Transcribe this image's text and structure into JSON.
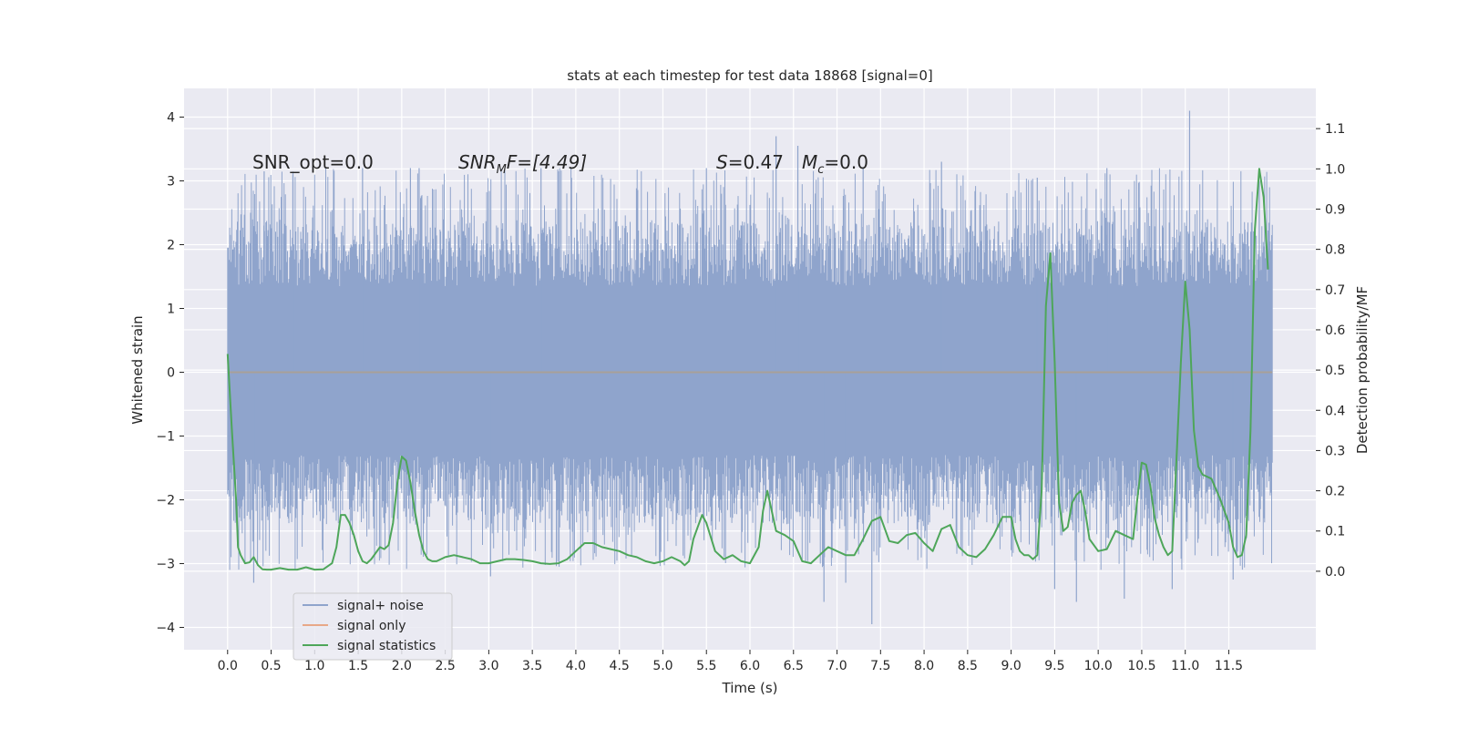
{
  "chart_data": {
    "type": "line",
    "title": "stats at each timestep for test data 18868 [signal=0]",
    "xlabel": "Time (s)",
    "ylabel": "Whitened strain",
    "y2label": "Detection probability/MF",
    "xlim": [
      -0.5,
      12.5
    ],
    "ylim": [
      -4.35,
      4.45
    ],
    "y2lim": [
      -0.195,
      1.2
    ],
    "xticks": [
      0.0,
      0.5,
      1.0,
      1.5,
      2.0,
      2.5,
      3.0,
      3.5,
      4.0,
      4.5,
      5.0,
      5.5,
      6.0,
      6.5,
      7.0,
      7.5,
      8.0,
      8.5,
      9.0,
      9.5,
      10.0,
      10.5,
      11.0,
      11.5
    ],
    "xtick_labels": [
      "0.0",
      "0.5",
      "1.0",
      "1.5",
      "2.0",
      "2.5",
      "3.0",
      "3.5",
      "4.0",
      "4.5",
      "5.0",
      "5.5",
      "6.0",
      "6.5",
      "7.0",
      "7.5",
      "8.0",
      "8.5",
      "9.0",
      "9.5",
      "10.0",
      "10.5",
      "11.0",
      "11.5"
    ],
    "yticks": [
      -4,
      -3,
      -2,
      -1,
      0,
      1,
      2,
      3,
      4
    ],
    "ytick_labels": [
      "−4",
      "−3",
      "−2",
      "−1",
      "0",
      "1",
      "2",
      "3",
      "4"
    ],
    "y2ticks": [
      0.0,
      0.1,
      0.2,
      0.3,
      0.4,
      0.5,
      0.6,
      0.7,
      0.8,
      0.9,
      1.0,
      1.1
    ],
    "y2tick_labels": [
      "0.0",
      "0.1",
      "0.2",
      "0.3",
      "0.4",
      "0.5",
      "0.6",
      "0.7",
      "0.8",
      "0.9",
      "1.0",
      "1.1"
    ],
    "grid": true,
    "legend_position": "lower-left",
    "annotations": {
      "snr_opt": "SNR_opt=0.0",
      "snr_mf": "SNR",
      "snr_mf_sub": "M",
      "snr_mf_rest": "F=[4.49]",
      "s_part": "S",
      "s_value": "=0.47",
      "mc_part": "M",
      "mc_sub": "c",
      "mc_value": "=0.0"
    },
    "series": [
      {
        "name": "signal+ noise",
        "color": "#8fa4cc",
        "axis": "left",
        "t_range": [
          0.0,
          12.0
        ],
        "envelope_outer": [
          -3.1,
          3.2
        ],
        "envelope_core": [
          -1.3,
          1.35
        ],
        "spikes": [
          {
            "x": 0.42,
            "y": 3.15
          },
          {
            "x": 0.75,
            "y": 3.1
          },
          {
            "x": 1.55,
            "y": 3.2
          },
          {
            "x": 2.1,
            "y": 3.2
          },
          {
            "x": 2.2,
            "y": 3.2
          },
          {
            "x": 3.6,
            "y": 3.2
          },
          {
            "x": 3.8,
            "y": 3.15
          },
          {
            "x": 5.5,
            "y": 3.2
          },
          {
            "x": 6.3,
            "y": 3.7
          },
          {
            "x": 6.55,
            "y": 3.55
          },
          {
            "x": 7.3,
            "y": 3.2
          },
          {
            "x": 8.2,
            "y": 3.3
          },
          {
            "x": 9.3,
            "y": 3.05
          },
          {
            "x": 10.1,
            "y": 3.2
          },
          {
            "x": 11.05,
            "y": 4.1
          },
          {
            "x": 11.85,
            "y": 3.0
          },
          {
            "x": 0.3,
            "y": -3.3
          },
          {
            "x": 3.02,
            "y": -3.2
          },
          {
            "x": 6.85,
            "y": -3.6
          },
          {
            "x": 7.1,
            "y": -3.3
          },
          {
            "x": 7.4,
            "y": -3.95
          },
          {
            "x": 9.5,
            "y": -3.4
          },
          {
            "x": 9.75,
            "y": -3.6
          },
          {
            "x": 10.3,
            "y": -3.55
          },
          {
            "x": 10.85,
            "y": -3.4
          },
          {
            "x": 11.55,
            "y": -3.25
          }
        ]
      },
      {
        "name": "signal only",
        "color": "#e8a888",
        "axis": "left",
        "x": [
          0.0,
          12.0
        ],
        "y": [
          0.0,
          0.0
        ]
      },
      {
        "name": "signal statistics",
        "color": "#4ea65a",
        "axis": "right",
        "x": [
          0.0,
          0.05,
          0.1,
          0.12,
          0.15,
          0.2,
          0.25,
          0.3,
          0.35,
          0.4,
          0.45,
          0.5,
          0.6,
          0.7,
          0.8,
          0.9,
          1.0,
          1.1,
          1.2,
          1.25,
          1.3,
          1.35,
          1.4,
          1.45,
          1.5,
          1.55,
          1.6,
          1.65,
          1.7,
          1.75,
          1.8,
          1.85,
          1.9,
          1.95,
          2.0,
          2.05,
          2.1,
          2.15,
          2.2,
          2.25,
          2.3,
          2.35,
          2.4,
          2.5,
          2.6,
          2.7,
          2.8,
          2.9,
          3.0,
          3.1,
          3.2,
          3.3,
          3.4,
          3.5,
          3.6,
          3.7,
          3.8,
          3.9,
          4.0,
          4.1,
          4.2,
          4.3,
          4.4,
          4.5,
          4.6,
          4.7,
          4.8,
          4.9,
          5.0,
          5.1,
          5.2,
          5.25,
          5.3,
          5.35,
          5.4,
          5.45,
          5.5,
          5.6,
          5.7,
          5.8,
          5.9,
          6.0,
          6.1,
          6.15,
          6.2,
          6.3,
          6.4,
          6.5,
          6.6,
          6.7,
          6.8,
          6.9,
          7.0,
          7.1,
          7.2,
          7.3,
          7.4,
          7.5,
          7.6,
          7.7,
          7.8,
          7.9,
          8.0,
          8.1,
          8.2,
          8.3,
          8.4,
          8.5,
          8.6,
          8.7,
          8.8,
          8.9,
          9.0,
          9.05,
          9.1,
          9.15,
          9.2,
          9.25,
          9.3,
          9.35,
          9.4,
          9.45,
          9.5,
          9.55,
          9.6,
          9.65,
          9.7,
          9.75,
          9.8,
          9.85,
          9.9,
          10.0,
          10.1,
          10.2,
          10.3,
          10.4,
          10.45,
          10.5,
          10.55,
          10.6,
          10.65,
          10.7,
          10.75,
          10.8,
          10.85,
          10.9,
          10.95,
          11.0,
          11.05,
          11.1,
          11.15,
          11.2,
          11.3,
          11.4,
          11.5,
          11.55,
          11.6,
          11.65,
          11.7,
          11.75,
          11.8,
          11.85,
          11.9,
          11.95
        ],
        "y": [
          0.54,
          0.35,
          0.17,
          0.06,
          0.04,
          0.02,
          0.022,
          0.035,
          0.015,
          0.005,
          0.004,
          0.004,
          0.008,
          0.004,
          0.004,
          0.01,
          0.004,
          0.005,
          0.02,
          0.06,
          0.14,
          0.14,
          0.12,
          0.09,
          0.05,
          0.025,
          0.02,
          0.03,
          0.045,
          0.06,
          0.055,
          0.065,
          0.12,
          0.22,
          0.285,
          0.275,
          0.22,
          0.15,
          0.09,
          0.05,
          0.03,
          0.025,
          0.025,
          0.035,
          0.04,
          0.035,
          0.03,
          0.02,
          0.02,
          0.025,
          0.03,
          0.03,
          0.028,
          0.025,
          0.02,
          0.018,
          0.02,
          0.03,
          0.05,
          0.07,
          0.07,
          0.06,
          0.055,
          0.05,
          0.04,
          0.035,
          0.025,
          0.02,
          0.025,
          0.035,
          0.025,
          0.015,
          0.025,
          0.08,
          0.11,
          0.14,
          0.12,
          0.05,
          0.03,
          0.04,
          0.025,
          0.02,
          0.06,
          0.15,
          0.2,
          0.1,
          0.09,
          0.075,
          0.025,
          0.02,
          0.04,
          0.06,
          0.05,
          0.04,
          0.04,
          0.08,
          0.125,
          0.135,
          0.075,
          0.07,
          0.09,
          0.095,
          0.07,
          0.05,
          0.105,
          0.115,
          0.06,
          0.04,
          0.035,
          0.055,
          0.09,
          0.135,
          0.135,
          0.08,
          0.05,
          0.04,
          0.04,
          0.03,
          0.04,
          0.2,
          0.66,
          0.79,
          0.52,
          0.17,
          0.1,
          0.11,
          0.17,
          0.19,
          0.2,
          0.15,
          0.08,
          0.05,
          0.055,
          0.1,
          0.09,
          0.08,
          0.18,
          0.27,
          0.265,
          0.21,
          0.13,
          0.09,
          0.06,
          0.04,
          0.05,
          0.28,
          0.52,
          0.72,
          0.6,
          0.35,
          0.26,
          0.24,
          0.23,
          0.18,
          0.12,
          0.06,
          0.035,
          0.04,
          0.09,
          0.35,
          0.85,
          1.0,
          0.93,
          0.75
        ]
      }
    ]
  }
}
